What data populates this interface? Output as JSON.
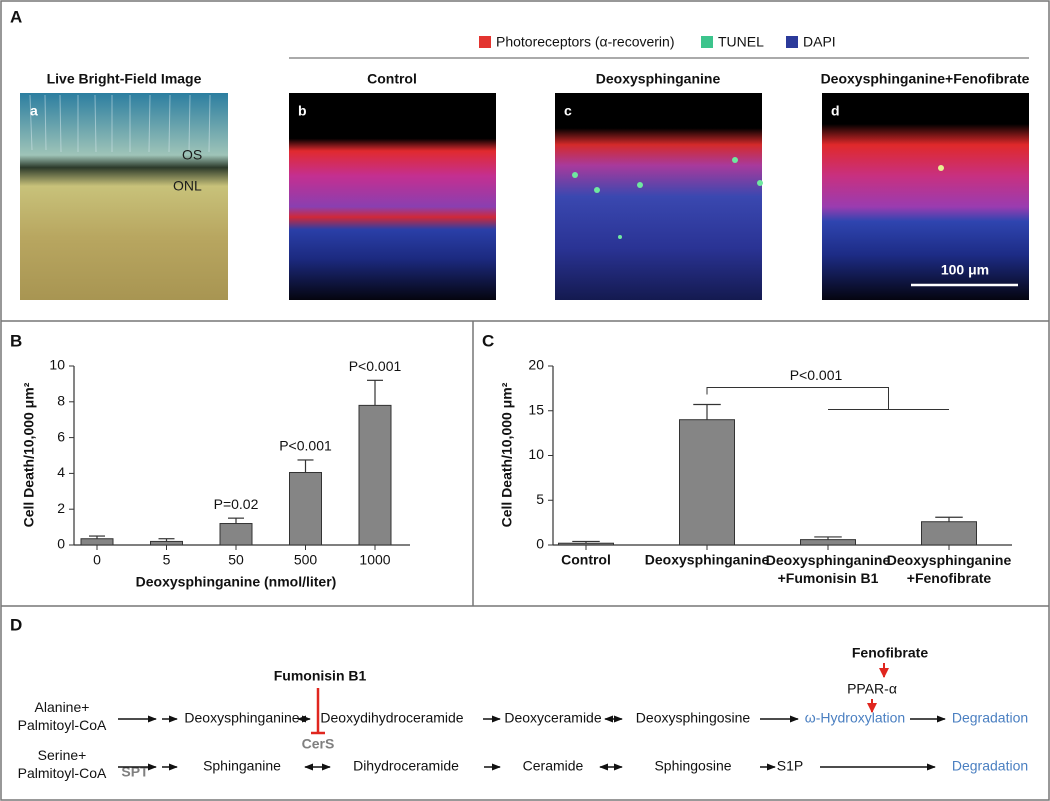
{
  "panel_a": {
    "label": "A",
    "legend": [
      {
        "name": "Photoreceptors (α-recoverin)",
        "color": "#e3342f"
      },
      {
        "name": "TUNEL",
        "color": "#3cc48c"
      },
      {
        "name": "DAPI",
        "color": "#2b3a9a"
      }
    ],
    "images": [
      {
        "letter": "a",
        "title": "Live Bright-Field Image",
        "labels": [
          "OS",
          "ONL"
        ]
      },
      {
        "letter": "b",
        "title": "Control"
      },
      {
        "letter": "c",
        "title": "Deoxysphinganine"
      },
      {
        "letter": "d",
        "title": "Deoxysphinganine+Fenofibrate"
      }
    ],
    "scale_bar": "100 μm"
  },
  "chart_data": [
    {
      "type": "bar",
      "panel_label": "B",
      "y_label": "Cell Death/10,000 μm²",
      "x_label": "Deoxysphinganine (nmol/liter)",
      "categories": [
        "0",
        "5",
        "50",
        "500",
        "1000"
      ],
      "values": [
        0.35,
        0.2,
        1.2,
        4.05,
        7.8
      ],
      "errors": [
        0.15,
        0.15,
        0.3,
        0.7,
        1.4
      ],
      "color": "#858585",
      "ylim": [
        0,
        10
      ],
      "yticks": [
        0,
        2,
        4,
        6,
        8,
        10
      ],
      "annotations": [
        {
          "category": "50",
          "text": "P=0.02"
        },
        {
          "category": "500",
          "text": "P<0.001"
        },
        {
          "category": "1000",
          "text": "P<0.001"
        }
      ]
    },
    {
      "type": "bar",
      "panel_label": "C",
      "y_label": "Cell Death/10,000 μm²",
      "categories": [
        "Control",
        "Deoxysphinganine",
        "Deoxysphinganine\n+Fumonisin B1",
        "Deoxysphinganine\n+Fenofibrate"
      ],
      "values": [
        0.2,
        14,
        0.6,
        2.6
      ],
      "errors": [
        0.2,
        1.7,
        0.3,
        0.5
      ],
      "color": "#858585",
      "ylim": [
        0,
        20
      ],
      "yticks": [
        0,
        5,
        10,
        15,
        20
      ],
      "bracket_label": "P<0.001"
    }
  ],
  "panel_d": {
    "label": "D",
    "inhibitor": "Fumonisin B1",
    "activator": "Fenofibrate",
    "receptor": "PPAR-α",
    "enzymes": [
      "SPT",
      "CerS"
    ],
    "row1": [
      "Alanine+\nPalmitoyl-CoA",
      "Deoxysphinganine",
      "Deoxydihydroceramide",
      "Deoxyceramide",
      "Deoxysphingosine",
      "ω-Hydroxylation",
      "Degradation"
    ],
    "row2": [
      "Serine+\nPalmitoyl-CoA",
      "Sphinganine",
      "Dihydroceramide",
      "Ceramide",
      "Sphingosine",
      "S1P",
      "Degradation"
    ]
  }
}
